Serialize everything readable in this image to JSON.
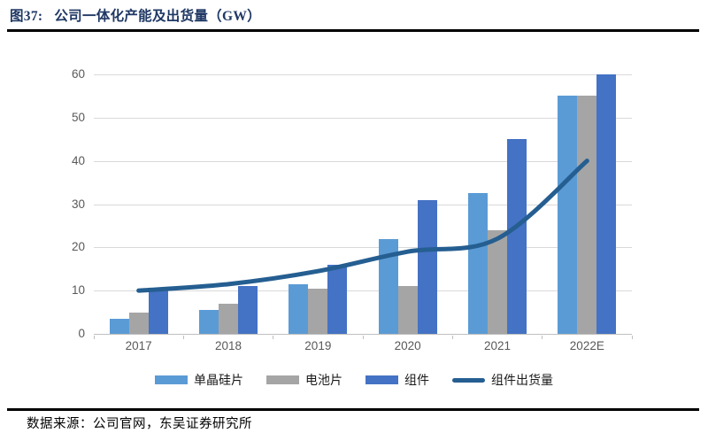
{
  "header": {
    "figure_label": "图37:",
    "title": "公司一体化产能及出货量（GW）"
  },
  "footer": {
    "source": "数据来源：公司官网，东吴证券研究所"
  },
  "theme": {
    "title_color": "#1F3864",
    "rule_color": "#000000",
    "gridline_color": "#D9D9D9",
    "axis_line_color": "#BFBFBF",
    "tick_label_color": "#595959",
    "legend_text_color": "#1A1A1A"
  },
  "chart_data": {
    "type": "bar+line",
    "title": "公司一体化产能及出货量（GW）",
    "categories": [
      "2017",
      "2018",
      "2019",
      "2020",
      "2021",
      "2022E"
    ],
    "series": [
      {
        "name": "单晶硅片",
        "type": "bar",
        "color": "#5B9BD5",
        "values": [
          3.5,
          5.5,
          11.5,
          22,
          32.5,
          55
        ]
      },
      {
        "name": "电池片",
        "type": "bar",
        "color": "#A5A5A5",
        "values": [
          5,
          7,
          10.5,
          11,
          24,
          55
        ]
      },
      {
        "name": "组件",
        "type": "bar",
        "color": "#4472C4",
        "values": [
          10.5,
          11,
          16,
          31,
          45,
          60
        ]
      },
      {
        "name": "组件出货量",
        "type": "line",
        "color": "#255E91",
        "values": [
          10,
          11.5,
          14.5,
          19,
          22,
          40
        ]
      }
    ],
    "xlabel": "",
    "ylabel": "",
    "ylim": [
      0,
      60
    ],
    "yticks": [
      0,
      10,
      20,
      30,
      40,
      50,
      60
    ],
    "grid": "horizontal",
    "legend_position": "bottom"
  }
}
